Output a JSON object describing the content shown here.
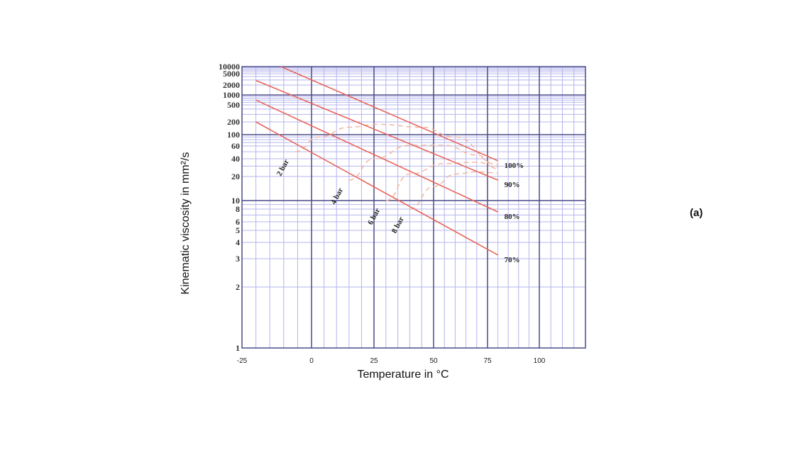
{
  "chart_data": {
    "type": "line",
    "panel_label": "(a)",
    "xlabel": "Temperature in °C",
    "ylabel": "Kinematic viscosity in mm²/s",
    "xlim": [
      -25,
      120
    ],
    "ylim": [
      1,
      10000
    ],
    "x_ticks": [
      "-25",
      "0",
      "25",
      "50",
      "75",
      "100"
    ],
    "y_ticks": [
      "10000",
      "5000",
      "2000",
      "1000",
      "500",
      "200",
      "100",
      "60",
      "40",
      "20",
      "10",
      "8",
      "6",
      "5",
      "4",
      "3",
      "2",
      "1"
    ],
    "grid": true,
    "series": [
      {
        "name": "100%",
        "points": [
          [
            -11,
            10000
          ],
          [
            80,
            37
          ]
        ]
      },
      {
        "name": "90%",
        "points": [
          [
            -20,
            2900
          ],
          [
            80,
            18
          ]
        ]
      },
      {
        "name": "80%",
        "points": [
          [
            -20,
            700
          ],
          [
            80,
            7.5
          ]
        ]
      },
      {
        "name": "70%",
        "points": [
          [
            -20,
            200
          ],
          [
            80,
            3.2
          ]
        ]
      }
    ],
    "pressure_curves": [
      {
        "name": "2 bar",
        "points": [
          [
            -6,
            50
          ],
          [
            3,
            90
          ],
          [
            15,
            150
          ],
          [
            27,
            175
          ],
          [
            45,
            150
          ],
          [
            60,
            90
          ],
          [
            80,
            32
          ]
        ]
      },
      {
        "name": "4 bar",
        "points": [
          [
            15,
            18
          ],
          [
            25,
            40
          ],
          [
            40,
            62
          ],
          [
            55,
            62
          ],
          [
            70,
            45
          ],
          [
            80,
            27
          ]
        ]
      },
      {
        "name": "6 bar",
        "points": [
          [
            30,
            10
          ],
          [
            40,
            22
          ],
          [
            55,
            33
          ],
          [
            70,
            35
          ],
          [
            80,
            29
          ]
        ]
      },
      {
        "name": "8 bar",
        "points": [
          [
            40,
            8
          ],
          [
            50,
            15
          ],
          [
            60,
            22
          ],
          [
            70,
            24
          ],
          [
            80,
            23
          ]
        ]
      }
    ],
    "colors": {
      "line": "#e8655a",
      "dash": "#f2b8a0",
      "grid_major": "#4a4a8a",
      "grid_minor": "#b4b4ee"
    }
  }
}
